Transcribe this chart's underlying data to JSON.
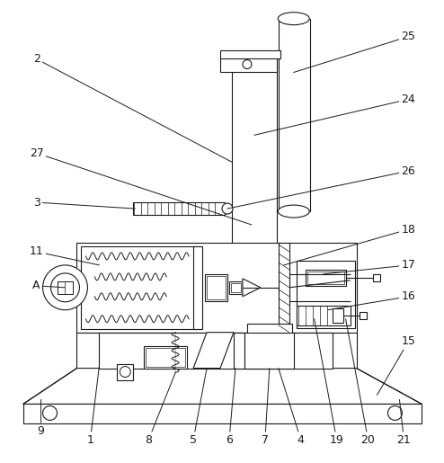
{
  "bg_color": "#ffffff",
  "line_color": "#1a1a1a",
  "fig_width": 4.94,
  "fig_height": 5.15,
  "dpi": 100
}
